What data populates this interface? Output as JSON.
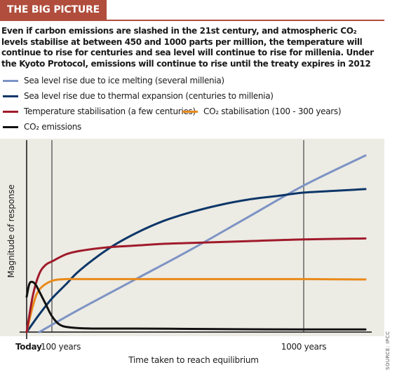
{
  "header": {
    "tag": "THE BIG PICTURE"
  },
  "intro": {
    "text": "Even if carbon emissions are slashed in the 21st century, and atmospheric CO₂ levels stabilise at between 450 and 1000 parts per million, the temperature will continue to rise for centuries and sea level will continue to rise for millenia. Under the Kyoto Protocol, emissions will continue to rise until the treaty expires in 2012"
  },
  "source": "SOURCE: IPCC",
  "colors": {
    "ice": "#7d93c4",
    "thermal": "#0d3668",
    "temperature": "#a01a2a",
    "co2_stab": "#e98a19",
    "co2_emis": "#111111",
    "plot_bg": "#ecebe4",
    "header": "#b04d3c"
  },
  "chart_data": {
    "type": "line",
    "title": "",
    "xlabel": "Time taken to reach equilibrium",
    "ylabel": "Magnitude of response",
    "x_tick_labels": [
      {
        "label": "Today",
        "x": 0,
        "bold": true
      },
      {
        "label": "100 years",
        "x": 100,
        "bold": false
      },
      {
        "label": "1000 years",
        "x": 1000,
        "bold": false
      }
    ],
    "axis_note": "x axis is schematic; gridlines at 100 years and 1000 years",
    "xlim": [
      0,
      1200
    ],
    "ylim": [
      0,
      100
    ],
    "grid": false,
    "legend_position": "top",
    "series": [
      {
        "key": "ice",
        "name": "Sea level rise due to ice melting (several millenia)",
        "x": [
          50,
          200,
          400,
          600,
          800,
          1000,
          1200
        ],
        "y": [
          0,
          13,
          30,
          47,
          65,
          83,
          100
        ]
      },
      {
        "key": "thermal",
        "name": "Sea level rise due to thermal expansion (centuries to millenia)",
        "x": [
          0,
          50,
          100,
          150,
          200,
          300,
          400,
          500,
          600,
          700,
          800,
          900,
          1000,
          1100,
          1200
        ],
        "y": [
          0,
          10,
          19,
          27,
          35,
          47,
          56,
          63,
          68,
          72,
          75,
          77,
          79,
          80,
          81
        ]
      },
      {
        "key": "temperature",
        "name": "Temperature stabilisation (a few centuries)",
        "x": [
          0,
          25,
          50,
          75,
          100,
          150,
          200,
          300,
          400,
          500,
          600,
          800,
          1000,
          1200
        ],
        "y": [
          0,
          21,
          33,
          38,
          40,
          44,
          46,
          48,
          49,
          50,
          50.5,
          51.5,
          52.5,
          53
        ]
      },
      {
        "key": "co2_stab",
        "name": "CO₂ stabilisation (100 - 300 years)",
        "x": [
          0,
          25,
          50,
          100,
          150,
          200,
          300,
          500,
          800,
          1000,
          1200
        ],
        "y": [
          0,
          15,
          24,
          29,
          30,
          30,
          30,
          30,
          30,
          30,
          29.8
        ]
      },
      {
        "key": "co2_emis",
        "name": "CO₂ emissions",
        "x": [
          0,
          10,
          20,
          35,
          50,
          75,
          100,
          130,
          175,
          250,
          400,
          600,
          800,
          1000,
          1200
        ],
        "y": [
          20,
          27,
          28.5,
          27,
          23,
          16,
          9,
          4,
          2.5,
          2,
          2,
          1.8,
          1.6,
          1.5,
          1.5
        ]
      }
    ]
  }
}
